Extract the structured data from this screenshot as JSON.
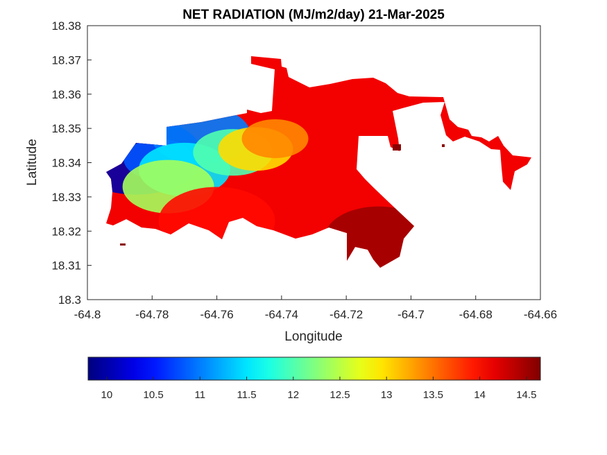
{
  "chart_data": {
    "type": "heatmap",
    "title": "NET RADIATION (MJ/m2/day) 21-Mar-2025",
    "xlabel": "Longitude",
    "ylabel": "Latitude",
    "xlim": [
      -64.8,
      -64.66
    ],
    "ylim": [
      18.3,
      18.38
    ],
    "x_ticks": [
      "-64.8",
      "-64.78",
      "-64.76",
      "-64.74",
      "-64.72",
      "-64.7",
      "-64.68",
      "-64.66"
    ],
    "y_ticks": [
      "18.3",
      "18.31",
      "18.32",
      "18.33",
      "18.34",
      "18.35",
      "18.36",
      "18.37",
      "18.38"
    ],
    "colorbar": {
      "range": [
        9.8,
        14.65
      ],
      "colormap": "jet",
      "ticks": [
        "10",
        "10.5",
        "11",
        "11.5",
        "12",
        "12.5",
        "13",
        "13.5",
        "14",
        "14.5"
      ]
    },
    "regions": [
      {
        "name": "main island",
        "lon": [
          -64.795,
          -64.705
        ],
        "lat": [
          18.309,
          18.371
        ],
        "value_range": [
          9.9,
          14.6
        ]
      },
      {
        "name": "eastern extension",
        "lon": [
          -64.705,
          -64.662
        ],
        "lat": [
          18.327,
          18.36
        ],
        "value_range": [
          14.3,
          14.6
        ]
      }
    ],
    "contours": [
      {
        "value": 10.0,
        "lon": -64.785,
        "lat": 18.342
      },
      {
        "value": 10.8,
        "lon": -64.778,
        "lat": 18.341
      },
      {
        "value": 11.0,
        "lon": -64.765,
        "lat": 18.348
      },
      {
        "value": 11.5,
        "lon": -64.77,
        "lat": 18.338
      },
      {
        "value": 12.0,
        "lon": -64.755,
        "lat": 18.343
      },
      {
        "value": 12.4,
        "lon": -64.775,
        "lat": 18.333
      },
      {
        "value": 13.0,
        "lon": -64.748,
        "lat": 18.344
      },
      {
        "value": 13.4,
        "lon": -64.742,
        "lat": 18.347
      },
      {
        "value": 14.0,
        "lon": -64.76,
        "lat": 18.323
      },
      {
        "value": 14.5,
        "lon": -64.71,
        "lat": 18.318
      }
    ]
  }
}
